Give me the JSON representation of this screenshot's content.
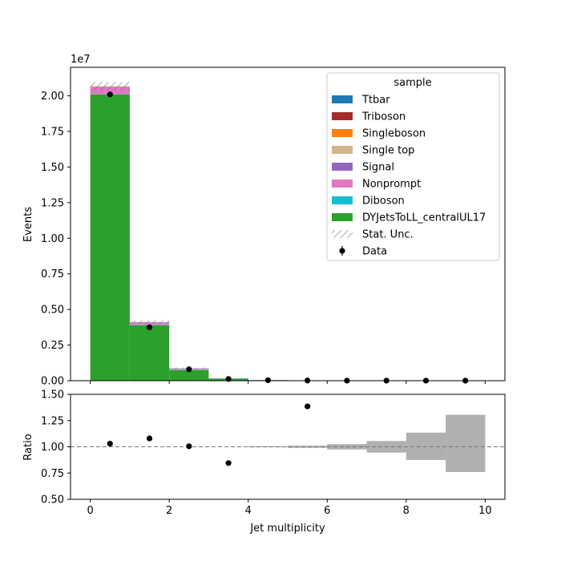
{
  "chart_data": [
    {
      "type": "bar",
      "stacked": true,
      "panel": "main",
      "ylabel": "Events",
      "xlabel": "",
      "offset_text": "1e7",
      "ylim": [
        0,
        2.2
      ],
      "xlim": [
        -0.5,
        10.5
      ],
      "y_ticks": [
        "0.00",
        "0.25",
        "0.50",
        "0.75",
        "1.00",
        "1.25",
        "1.50",
        "1.75",
        "2.00"
      ],
      "y_tick_values": [
        0,
        0.25,
        0.5,
        0.75,
        1.0,
        1.25,
        1.5,
        1.75,
        2.0
      ],
      "bin_edges": [
        0,
        1,
        2,
        3,
        4,
        5,
        6,
        7,
        8,
        9,
        10
      ],
      "series": [
        {
          "name": "DYJetsToLL_centralUL17",
          "color": "#2ca02c",
          "values": [
            2.01,
            0.39,
            0.075,
            0.013,
            0.003,
            0.001,
            0.0004,
            0.0002,
            0.0001,
            0.0001
          ]
        },
        {
          "name": "Diboson",
          "color": "#17becf",
          "values": [
            0.002,
            0.002,
            0.002,
            0.001,
            0.0005,
            0.0002,
            0.0001,
            0,
            0,
            0
          ]
        },
        {
          "name": "Nonprompt",
          "color": "#e377c2",
          "values": [
            0.05,
            0.015,
            0.005,
            0.001,
            0.0003,
            0.0001,
            0,
            0,
            0,
            0
          ]
        },
        {
          "name": "Signal",
          "color": "#9467bd",
          "values": [
            0.001,
            0.001,
            0.001,
            0.0005,
            0.0002,
            0.0001,
            0,
            0,
            0,
            0
          ]
        },
        {
          "name": "Single top",
          "color": "#d2b48c",
          "values": [
            0,
            0.0005,
            0.0005,
            0.0002,
            0.0001,
            0,
            0,
            0,
            0,
            0
          ]
        },
        {
          "name": "Singleboson",
          "color": "#ff7f0e",
          "values": [
            0.002,
            0.001,
            0.0005,
            0.0002,
            0.0001,
            0,
            0,
            0,
            0,
            0
          ]
        },
        {
          "name": "Triboson",
          "color": "#a52a2a",
          "values": [
            0,
            0,
            0,
            0,
            0,
            0,
            0,
            0,
            0,
            0
          ]
        },
        {
          "name": "Ttbar",
          "color": "#1f77b4",
          "values": [
            0.001,
            0.002,
            0.002,
            0.001,
            0.0003,
            0.0001,
            0,
            0,
            0,
            0
          ]
        }
      ],
      "stat_unc": [
        0.03,
        0.012,
        0.006,
        0.002,
        0.0005,
        0.0002,
        0.0001,
        0.0001,
        0.0001,
        0.0001
      ],
      "data": {
        "name": "Data",
        "x": [
          0.5,
          1.5,
          2.5,
          3.5,
          4.5,
          5.5,
          6.5,
          7.5,
          8.5,
          9.5
        ],
        "y": [
          2.01,
          0.375,
          0.08,
          0.012,
          0.003,
          0.0012,
          0.0004,
          0.0002,
          0.0001,
          0.0001
        ]
      },
      "stat_unc_label": "Stat. Unc.",
      "legend": {
        "title": "sample",
        "placement": "top-right",
        "entries": [
          "Ttbar",
          "Triboson",
          "Singleboson",
          "Single top",
          "Signal",
          "Nonprompt",
          "Diboson",
          "DYJetsToLL_centralUL17",
          "Stat. Unc.",
          "Data"
        ]
      }
    },
    {
      "type": "scatter",
      "panel": "ratio",
      "xlabel": "Jet multiplicity",
      "ylabel": "Ratio",
      "xlim": [
        -0.5,
        10.5
      ],
      "ylim": [
        0.5,
        1.5
      ],
      "x_ticks": [
        "0",
        "2",
        "4",
        "6",
        "8",
        "10"
      ],
      "x_tick_values": [
        0,
        2,
        4,
        6,
        8,
        10
      ],
      "y_ticks": [
        "0.50",
        "0.75",
        "1.00",
        "1.25",
        "1.50"
      ],
      "y_tick_values": [
        0.5,
        0.75,
        1.0,
        1.25,
        1.5
      ],
      "reference_line": 1.0,
      "points": {
        "x": [
          0.5,
          1.5,
          2.5,
          3.5,
          5.5
        ],
        "y": [
          1.03,
          1.08,
          1.005,
          0.845,
          1.385
        ]
      },
      "unc_band": {
        "bin_edges": [
          4,
          5,
          6,
          7,
          8,
          9,
          10
        ],
        "low": [
          0.995,
          0.99,
          0.975,
          0.945,
          0.875,
          0.76
        ],
        "high": [
          1.005,
          1.01,
          1.025,
          1.055,
          1.135,
          1.305
        ]
      }
    }
  ]
}
